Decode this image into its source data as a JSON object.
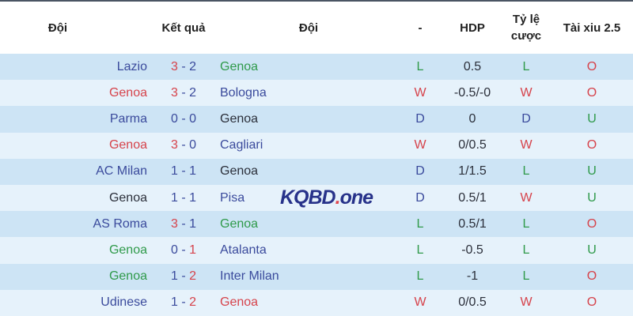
{
  "colors": {
    "blue": "#3a4a9c",
    "red": "#d6434b",
    "green": "#2f9a4a",
    "black": "#2b2f3a"
  },
  "header": {
    "home": "Đội",
    "score": "Kết quả",
    "away": "Đội",
    "result": "-",
    "hdp": "HDP",
    "odds_line1": "Tỷ lệ",
    "odds_line2": "cược",
    "ou": "Tài xiu 2.5"
  },
  "watermark": {
    "text_main": "KQBD",
    "text_dot": ".",
    "text_tail": "one"
  },
  "rows": [
    {
      "home": "Lazio",
      "home_color": "blue",
      "hs": "3",
      "hs_color": "red",
      "as": "2",
      "as_color": "blue",
      "away": "Genoa",
      "away_color": "green",
      "result": "L",
      "hdp": "0.5",
      "odds": "L",
      "ou": "O"
    },
    {
      "home": "Genoa",
      "home_color": "red",
      "hs": "3",
      "hs_color": "red",
      "as": "2",
      "as_color": "blue",
      "away": "Bologna",
      "away_color": "blue",
      "result": "W",
      "hdp": "-0.5/-0",
      "odds": "W",
      "ou": "O"
    },
    {
      "home": "Parma",
      "home_color": "blue",
      "hs": "0",
      "hs_color": "blue",
      "as": "0",
      "as_color": "blue",
      "away": "Genoa",
      "away_color": "black",
      "result": "D",
      "hdp": "0",
      "odds": "D",
      "ou": "U"
    },
    {
      "home": "Genoa",
      "home_color": "red",
      "hs": "3",
      "hs_color": "red",
      "as": "0",
      "as_color": "blue",
      "away": "Cagliari",
      "away_color": "blue",
      "result": "W",
      "hdp": "0/0.5",
      "odds": "W",
      "ou": "O"
    },
    {
      "home": "AC Milan",
      "home_color": "blue",
      "hs": "1",
      "hs_color": "blue",
      "as": "1",
      "as_color": "blue",
      "away": "Genoa",
      "away_color": "black",
      "result": "D",
      "hdp": "1/1.5",
      "odds": "L",
      "ou": "U"
    },
    {
      "home": "Genoa",
      "home_color": "black",
      "hs": "1",
      "hs_color": "blue",
      "as": "1",
      "as_color": "blue",
      "away": "Pisa",
      "away_color": "blue",
      "result": "D",
      "hdp": "0.5/1",
      "odds": "W",
      "ou": "U"
    },
    {
      "home": "AS Roma",
      "home_color": "blue",
      "hs": "3",
      "hs_color": "red",
      "as": "1",
      "as_color": "blue",
      "away": "Genoa",
      "away_color": "green",
      "result": "L",
      "hdp": "0.5/1",
      "odds": "L",
      "ou": "O"
    },
    {
      "home": "Genoa",
      "home_color": "green",
      "hs": "0",
      "hs_color": "blue",
      "as": "1",
      "as_color": "red",
      "away": "Atalanta",
      "away_color": "blue",
      "result": "L",
      "hdp": "-0.5",
      "odds": "L",
      "ou": "U"
    },
    {
      "home": "Genoa",
      "home_color": "green",
      "hs": "1",
      "hs_color": "blue",
      "as": "2",
      "as_color": "red",
      "away": "Inter Milan",
      "away_color": "blue",
      "result": "L",
      "hdp": "-1",
      "odds": "L",
      "ou": "O"
    },
    {
      "home": "Udinese",
      "home_color": "blue",
      "hs": "1",
      "hs_color": "blue",
      "as": "2",
      "as_color": "red",
      "away": "Genoa",
      "away_color": "red",
      "result": "W",
      "hdp": "0/0.5",
      "odds": "W",
      "ou": "O"
    }
  ]
}
